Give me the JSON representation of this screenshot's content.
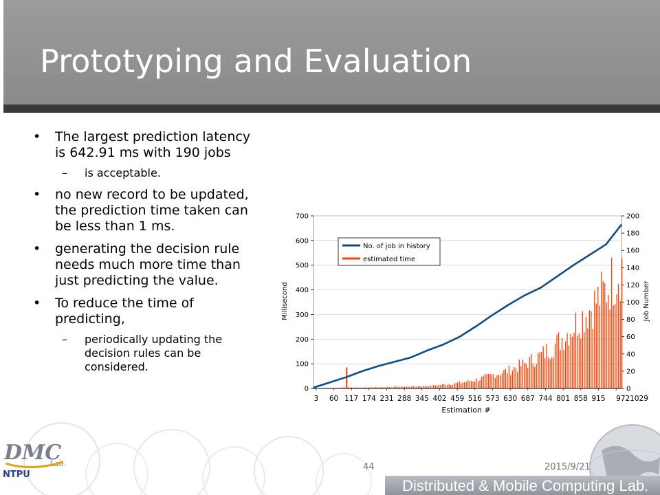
{
  "slide": {
    "title": "Prototyping and Evaluation",
    "bullets": [
      {
        "level": 1,
        "text": "The largest prediction latency is 642.91 ms with 190 jobs"
      },
      {
        "level": 2,
        "text": "is acceptable."
      },
      {
        "level": 1,
        "text": "no new record to be updated, the prediction time taken can be less than 1 ms."
      },
      {
        "level": 1,
        "text": "generating the decision rule needs much more time than just predicting the value."
      },
      {
        "level": 1,
        "text": "To reduce the time of predicting,"
      },
      {
        "level": 2,
        "text": "periodically updating the decision rules can be considered."
      }
    ],
    "footer": {
      "page_number": "44",
      "date": "2015/9/21",
      "lab_name": "Distributed & Mobile Computing Lab."
    },
    "logo": {
      "text": "DMC",
      "small": "Lab.",
      "org": "NTPU"
    }
  },
  "chart_data": {
    "type": "bar+line",
    "xlabel": "Estimation #",
    "ylabel_left": "Millisecond",
    "ylabel_right": "Job Number",
    "x_tick_labels": [
      "3",
      "60",
      "117",
      "174",
      "231",
      "288",
      "345",
      "402",
      "459",
      "516",
      "573",
      "630",
      "687",
      "744",
      "801",
      "858",
      "915",
      "9721029"
    ],
    "x_range": [
      3,
      1083
    ],
    "ylim_left": [
      0,
      700
    ],
    "yticks_left": [
      0,
      100,
      200,
      300,
      400,
      500,
      600,
      700
    ],
    "ylim_right": [
      0,
      200
    ],
    "yticks_right": [
      0,
      20,
      40,
      60,
      80,
      100,
      120,
      140,
      160,
      180,
      200
    ],
    "legend": {
      "placement": "upper-left inside plot",
      "entries": [
        "No. of job in history",
        "estimated time"
      ]
    },
    "series": [
      {
        "name": "No. of job in history",
        "axis": "right",
        "kind": "line",
        "color": "#0f4c81",
        "x": [
          3,
          60,
          117,
          174,
          231,
          288,
          345,
          402,
          459,
          516,
          573,
          630,
          687,
          744,
          801,
          858,
          915,
          972,
          1029,
          1083
        ],
        "y": [
          1,
          7,
          13,
          20,
          26,
          31,
          36,
          44,
          51,
          60,
          72,
          85,
          97,
          108,
          117,
          130,
          143,
          155,
          167,
          190
        ]
      },
      {
        "name": "estimated time",
        "axis": "left",
        "kind": "bar",
        "color": "#ff4000",
        "x": [
          3,
          60,
          100,
          117,
          135,
          174,
          231,
          288,
          345,
          402,
          459,
          516,
          573,
          630,
          687,
          744,
          801,
          858,
          915,
          972,
          1029,
          1083
        ],
        "y": [
          1,
          2,
          3,
          85,
          4,
          5,
          6,
          8,
          10,
          12,
          20,
          30,
          45,
          70,
          95,
          130,
          175,
          240,
          330,
          420,
          520,
          643
        ]
      }
    ]
  },
  "colors": {
    "title_bar": "#999999",
    "title_rule": "#3a3a3a",
    "line_series": "#0f4c81",
    "bar_series": "#ff4000"
  }
}
